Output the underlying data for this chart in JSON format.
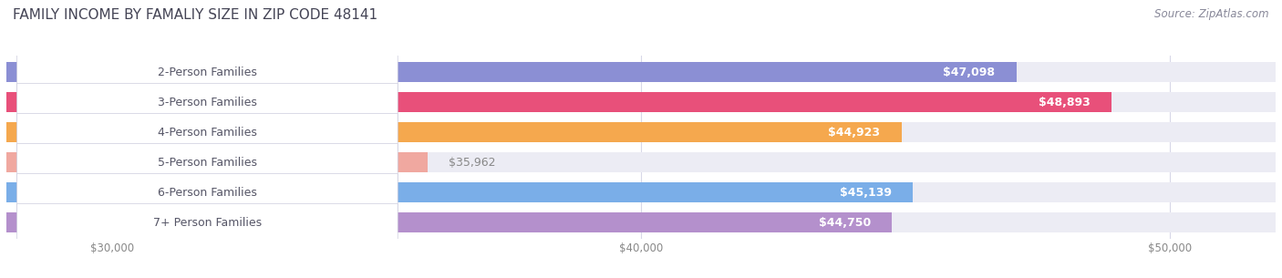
{
  "title": "FAMILY INCOME BY FAMALIY SIZE IN ZIP CODE 48141",
  "source": "Source: ZipAtlas.com",
  "categories": [
    "2-Person Families",
    "3-Person Families",
    "4-Person Families",
    "5-Person Families",
    "6-Person Families",
    "7+ Person Families"
  ],
  "values": [
    47098,
    48893,
    44923,
    35962,
    45139,
    44750
  ],
  "bar_colors": [
    "#8b8fd4",
    "#e8507a",
    "#f5a84e",
    "#f0a8a0",
    "#7aaee8",
    "#b490cc"
  ],
  "bar_bg_color": "#ececf4",
  "value_labels": [
    "$47,098",
    "$48,893",
    "$44,923",
    "$35,962",
    "$45,139",
    "$44,750"
  ],
  "xmin": 28000,
  "xmax": 52000,
  "xticks": [
    30000,
    40000,
    50000
  ],
  "xticklabels": [
    "$30,000",
    "$40,000",
    "$50,000"
  ],
  "title_fontsize": 11,
  "source_fontsize": 8.5,
  "label_fontsize": 9,
  "value_fontsize": 9,
  "background_color": "#ffffff",
  "grid_color": "#d8d8e8"
}
